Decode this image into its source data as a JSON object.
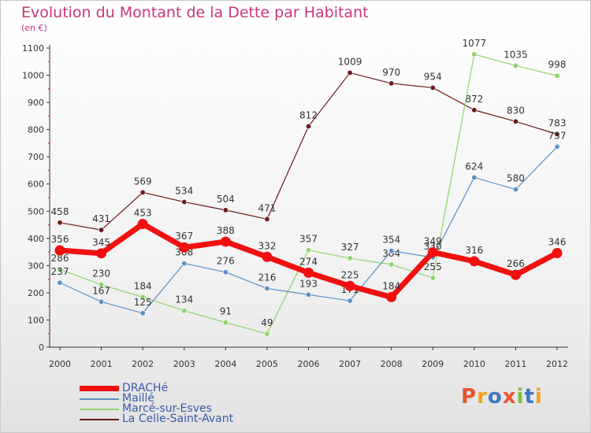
{
  "title": "Evolution du Montant de la Dette par Habitant",
  "subtitle": "(en €)",
  "logo": {
    "text": "Proxiti",
    "letters": [
      {
        "ch": "P",
        "color": "#e8542f"
      },
      {
        "ch": "r",
        "color": "#f0a21b"
      },
      {
        "ch": "o",
        "color": "#3b78c4"
      },
      {
        "ch": "x",
        "color": "#e8542f"
      },
      {
        "ch": "i",
        "color": "#7bbf3a"
      },
      {
        "ch": "t",
        "color": "#3b78c4"
      },
      {
        "ch": "i",
        "color": "#f0a21b"
      }
    ]
  },
  "chart_data": {
    "type": "line",
    "title": "Evolution du Montant de la Dette par Habitant",
    "subtitle": "(en €)",
    "xlabel": "",
    "ylabel": "",
    "x": [
      "2000",
      "2001",
      "2002",
      "2003",
      "2004",
      "2005",
      "2006",
      "2007",
      "2008",
      "2009",
      "2010",
      "2011",
      "2012"
    ],
    "ylim": [
      0,
      1100
    ],
    "yticks": [
      0,
      100,
      200,
      300,
      400,
      500,
      600,
      700,
      800,
      900,
      1000,
      1100
    ],
    "grid": false,
    "legend_position": "bottom-left",
    "series": [
      {
        "name": "La Celle-Saint-Avant",
        "color": "#6b1a1a",
        "width": 1.2,
        "values": [
          458,
          431,
          569,
          534,
          504,
          471,
          812,
          1009,
          970,
          954,
          872,
          830,
          783
        ]
      },
      {
        "name": "Marcé-sur-Esves",
        "color": "#8fd46a",
        "width": 1.2,
        "values": [
          286,
          230,
          184,
          134,
          91,
          49,
          357,
          327,
          304,
          255,
          1077,
          1035,
          998
        ]
      },
      {
        "name": "Maillé",
        "color": "#5a8fc4",
        "width": 1.2,
        "values": [
          237,
          167,
          125,
          308,
          276,
          216,
          193,
          171,
          354,
          330,
          624,
          580,
          737
        ]
      },
      {
        "name": "DRACHé",
        "color": "#f01010",
        "width": 7,
        "values": [
          356,
          345,
          453,
          367,
          388,
          332,
          274,
          225,
          184,
          349,
          316,
          266,
          346
        ]
      }
    ],
    "legend_order": [
      "DRACHé",
      "Maillé",
      "Marcé-sur-Esves",
      "La Celle-Saint-Avant"
    ]
  }
}
